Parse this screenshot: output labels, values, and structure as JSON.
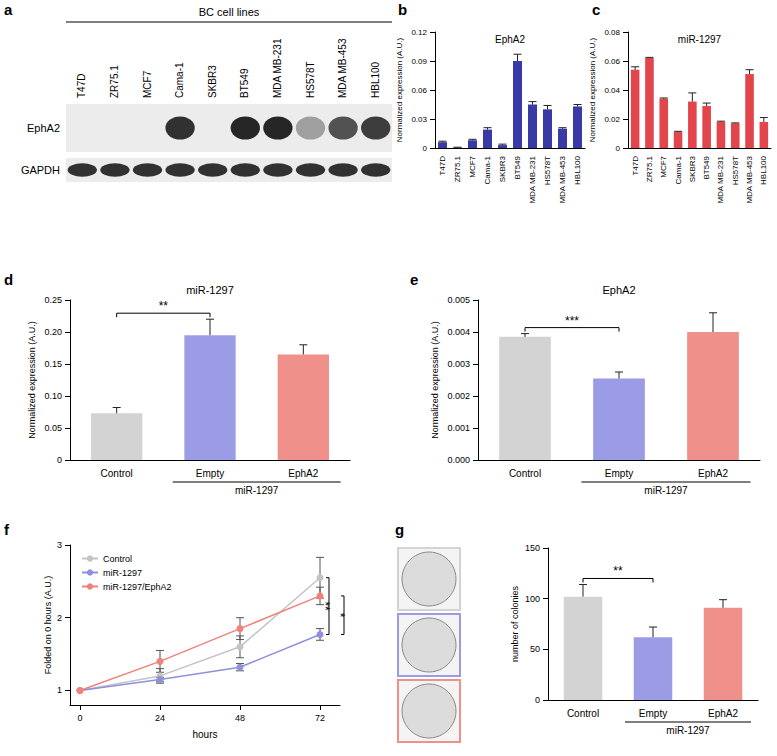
{
  "western_blot": {
    "panel": "a",
    "header": "BC cell lines",
    "lanes": [
      "T47D",
      "ZR75.1",
      "MCF7",
      "Cama-1",
      "SKBR3",
      "BT549",
      "MDA MB-231",
      "HS578T",
      "MDA MB-453",
      "HBL100"
    ],
    "rows": [
      {
        "label": "EphA2",
        "intensity": [
          0,
          0,
          0,
          0.85,
          0,
          0.9,
          0.9,
          0.35,
          0.7,
          0.8
        ]
      },
      {
        "label": "GAPDH",
        "intensity": [
          0.85,
          0.85,
          0.85,
          0.85,
          0.85,
          0.85,
          0.85,
          0.85,
          0.85,
          0.85
        ]
      }
    ]
  },
  "chart_data": [
    {
      "panel": "b",
      "type": "bar",
      "title": "EphA2",
      "ylabel": "Normalized expression (A.U.)",
      "categories": [
        "T47D",
        "ZR75.1",
        "MCF7",
        "Cama-1",
        "SKBR3",
        "BT549",
        "MDA MB-231",
        "HS578T",
        "MDA MB-453",
        "HBL100"
      ],
      "values": [
        0.006,
        0.0005,
        0.008,
        0.019,
        0.003,
        0.09,
        0.045,
        0.04,
        0.02,
        0.043
      ],
      "errors": [
        0.001,
        0.0003,
        0.001,
        0.002,
        0.001,
        0.007,
        0.003,
        0.004,
        0.001,
        0.002
      ],
      "color": "#3a3aa6",
      "ylim": [
        0,
        0.12
      ],
      "yticks": [
        0,
        0.03,
        0.06,
        0.09,
        0.12
      ],
      "grid": false
    },
    {
      "panel": "c",
      "type": "bar",
      "title": "miR-1297",
      "ylabel": "Normalized expression (A.U.)",
      "categories": [
        "T47D",
        "ZR75.1",
        "MCF7",
        "Cama-1",
        "SKBR3",
        "BT549",
        "MDA MB-231",
        "HS578T",
        "MDA MB-453",
        "HBL100"
      ],
      "values": [
        0.054,
        0.062,
        0.034,
        0.011,
        0.032,
        0.029,
        0.018,
        0.017,
        0.051,
        0.018
      ],
      "errors": [
        0.002,
        0.0005,
        0.0005,
        0.0005,
        0.006,
        0.002,
        0.0005,
        0.0003,
        0.003,
        0.003
      ],
      "color": "#e2454b",
      "ylim": [
        0,
        0.08
      ],
      "yticks": [
        0,
        0.02,
        0.04,
        0.06,
        0.08
      ],
      "grid": false
    },
    {
      "panel": "d",
      "type": "bar",
      "title": "miR-1297",
      "ylabel": "Normalized expression (A.U.)",
      "categories": [
        "Control",
        "Empty",
        "EphA2"
      ],
      "group_label": {
        "text": "miR-1297",
        "categories": [
          "Empty",
          "EphA2"
        ]
      },
      "values": [
        0.073,
        0.195,
        0.165
      ],
      "errors": [
        0.009,
        0.025,
        0.015
      ],
      "colors": [
        "#d3d3d3",
        "#9c9ce6",
        "#f0908a"
      ],
      "ylim": [
        0,
        0.25
      ],
      "yticks": [
        0,
        0.05,
        {
          "value": 0.1,
          "label": "0.10"
        },
        0.15,
        {
          "value": 0.2,
          "label": "0.20"
        },
        0.25
      ],
      "annotations": [
        {
          "text": "**",
          "categories": [
            "Control",
            "Empty"
          ]
        }
      ],
      "grid": false
    },
    {
      "panel": "e",
      "type": "bar",
      "title": "EphA2",
      "ylabel": "Normalized expression (A.U.)",
      "categories": [
        "Control",
        "Empty",
        "EphA2"
      ],
      "group_label": {
        "text": "miR-1297",
        "categories": [
          "Empty",
          "EphA2"
        ]
      },
      "values": [
        0.00385,
        0.00255,
        0.004
      ],
      "errors": [
        0.0001,
        0.0002,
        0.0006
      ],
      "colors": [
        "#d3d3d3",
        "#9c9ce6",
        "#f0908a"
      ],
      "ylim": [
        0,
        0.005
      ],
      "yticks": [
        {
          "value": 0,
          "label": "0.000"
        },
        0.001,
        0.002,
        0.003,
        0.004,
        0.005
      ],
      "annotations": [
        {
          "text": "***",
          "categories": [
            "Control",
            "Empty"
          ]
        }
      ],
      "grid": false
    },
    {
      "panel": "f",
      "type": "line",
      "xlabel": "hours",
      "ylabel": "Folded on 0 hours (A.U.)",
      "x": [
        0,
        24,
        48,
        72
      ],
      "series": [
        {
          "name": "Control",
          "color": "#c4c4c4",
          "values": [
            1,
            1.2,
            1.6,
            2.55
          ],
          "errors": [
            0,
            0.1,
            0.15,
            0.28
          ]
        },
        {
          "name": "miR-1297",
          "color": "#8f8fe0",
          "values": [
            1,
            1.15,
            1.32,
            1.77
          ],
          "errors": [
            0,
            0.03,
            0.05,
            0.08
          ]
        },
        {
          "name": "miR-1297/EphA2",
          "color": "#f0827a",
          "values": [
            1,
            1.4,
            1.85,
            2.3
          ],
          "errors": [
            0,
            0.15,
            0.15,
            0.12
          ]
        }
      ],
      "xlim": [
        -3,
        78
      ],
      "xticks": [
        0,
        24,
        48,
        72
      ],
      "ylim": [
        0.8,
        3
      ],
      "yticks": [
        1,
        2,
        3
      ],
      "legend": "top-left",
      "marker": "circle",
      "line_style": "solid",
      "grid": false,
      "annotations": [
        {
          "text": "**",
          "series": [
            "Control",
            "miR-1297"
          ]
        },
        {
          "text": "*",
          "series": [
            "miR-1297/EphA2",
            "miR-1297"
          ]
        }
      ]
    },
    {
      "panel": "g",
      "type": "bar",
      "ylabel": "number of colonies",
      "categories": [
        "Control",
        "Empty",
        "EphA2"
      ],
      "group_label": {
        "text": "miR-1297",
        "categories": [
          "Empty",
          "EphA2"
        ]
      },
      "values": [
        102,
        62,
        91
      ],
      "errors": [
        12,
        10,
        8
      ],
      "colors": [
        "#d3d3d3",
        "#9c9ce6",
        "#f0908a"
      ],
      "ylim": [
        0,
        150
      ],
      "yticks": [
        0,
        50,
        100,
        150
      ],
      "annotations": [
        {
          "text": "**",
          "categories": [
            "Control",
            "Empty"
          ]
        }
      ],
      "grid": false
    }
  ]
}
